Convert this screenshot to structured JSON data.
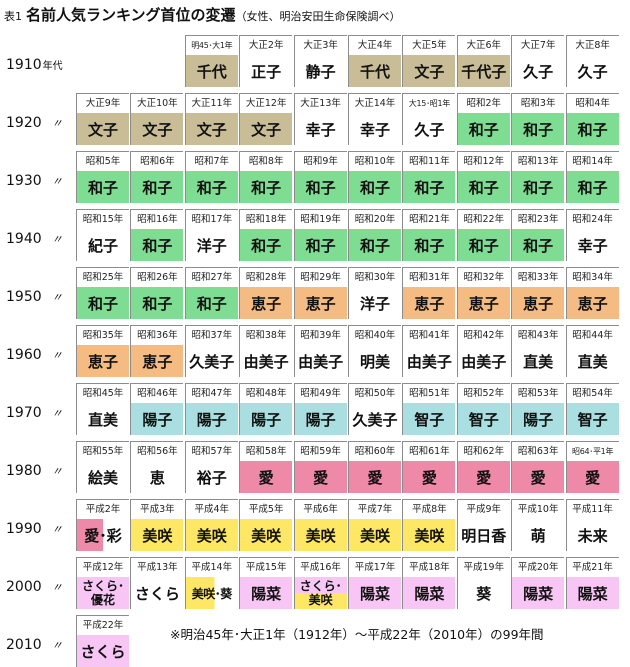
{
  "title": {
    "tag": "表1",
    "main": "名前人気ランキング首位の変遷",
    "note": "（女性、明治安田生命保険調べ）"
  },
  "decade_suffix": "年代",
  "row_mark": "〃",
  "footnote": "※明治45年･大正1年（1912年）～平成22年（2010年）の99年間",
  "rows": [
    {
      "decade": "1910",
      "start_col": 3,
      "cells": [
        {
          "era": "明45･大1年",
          "name": "千代",
          "color": "beige"
        },
        {
          "era": "大正2年",
          "name": "正子",
          "color": "white"
        },
        {
          "era": "大正3年",
          "name": "静子",
          "color": "white"
        },
        {
          "era": "大正4年",
          "name": "千代",
          "color": "beige"
        },
        {
          "era": "大正5年",
          "name": "文子",
          "color": "beige"
        },
        {
          "era": "大正6年",
          "name": "千代子",
          "color": "beige"
        },
        {
          "era": "大正7年",
          "name": "久子",
          "color": "white"
        },
        {
          "era": "大正8年",
          "name": "久子",
          "color": "white"
        }
      ]
    },
    {
      "decade": "1920",
      "start_col": 1,
      "cells": [
        {
          "era": "大正9年",
          "name": "文子",
          "color": "beige"
        },
        {
          "era": "大正10年",
          "name": "文子",
          "color": "beige"
        },
        {
          "era": "大正11年",
          "name": "文子",
          "color": "beige"
        },
        {
          "era": "大正12年",
          "name": "文子",
          "color": "beige"
        },
        {
          "era": "大正13年",
          "name": "幸子",
          "color": "white"
        },
        {
          "era": "大正14年",
          "name": "幸子",
          "color": "white"
        },
        {
          "era": "大15･昭1年",
          "name": "久子",
          "color": "white"
        },
        {
          "era": "昭和2年",
          "name": "和子",
          "color": "green"
        },
        {
          "era": "昭和3年",
          "name": "和子",
          "color": "green"
        },
        {
          "era": "昭和4年",
          "name": "和子",
          "color": "green"
        }
      ]
    },
    {
      "decade": "1930",
      "start_col": 1,
      "cells": [
        {
          "era": "昭和5年",
          "name": "和子",
          "color": "green"
        },
        {
          "era": "昭和6年",
          "name": "和子",
          "color": "green"
        },
        {
          "era": "昭和7年",
          "name": "和子",
          "color": "green"
        },
        {
          "era": "昭和8年",
          "name": "和子",
          "color": "green"
        },
        {
          "era": "昭和9年",
          "name": "和子",
          "color": "green"
        },
        {
          "era": "昭和10年",
          "name": "和子",
          "color": "green"
        },
        {
          "era": "昭和11年",
          "name": "和子",
          "color": "green"
        },
        {
          "era": "昭和12年",
          "name": "和子",
          "color": "green"
        },
        {
          "era": "昭和13年",
          "name": "和子",
          "color": "green"
        },
        {
          "era": "昭和14年",
          "name": "和子",
          "color": "green"
        }
      ]
    },
    {
      "decade": "1940",
      "start_col": 1,
      "cells": [
        {
          "era": "昭和15年",
          "name": "紀子",
          "color": "white"
        },
        {
          "era": "昭和16年",
          "name": "和子",
          "color": "green"
        },
        {
          "era": "昭和17年",
          "name": "洋子",
          "color": "white"
        },
        {
          "era": "昭和18年",
          "name": "和子",
          "color": "green"
        },
        {
          "era": "昭和19年",
          "name": "和子",
          "color": "green"
        },
        {
          "era": "昭和20年",
          "name": "和子",
          "color": "green"
        },
        {
          "era": "昭和21年",
          "name": "和子",
          "color": "green"
        },
        {
          "era": "昭和22年",
          "name": "和子",
          "color": "green"
        },
        {
          "era": "昭和23年",
          "name": "和子",
          "color": "green"
        },
        {
          "era": "昭和24年",
          "name": "幸子",
          "color": "white"
        }
      ]
    },
    {
      "decade": "1950",
      "start_col": 1,
      "cells": [
        {
          "era": "昭和25年",
          "name": "和子",
          "color": "green"
        },
        {
          "era": "昭和26年",
          "name": "和子",
          "color": "green"
        },
        {
          "era": "昭和27年",
          "name": "和子",
          "color": "green"
        },
        {
          "era": "昭和28年",
          "name": "恵子",
          "color": "orange"
        },
        {
          "era": "昭和29年",
          "name": "恵子",
          "color": "orange"
        },
        {
          "era": "昭和30年",
          "name": "洋子",
          "color": "white"
        },
        {
          "era": "昭和31年",
          "name": "恵子",
          "color": "orange"
        },
        {
          "era": "昭和32年",
          "name": "恵子",
          "color": "orange"
        },
        {
          "era": "昭和33年",
          "name": "恵子",
          "color": "orange"
        },
        {
          "era": "昭和34年",
          "name": "恵子",
          "color": "orange"
        }
      ]
    },
    {
      "decade": "1960",
      "start_col": 1,
      "cells": [
        {
          "era": "昭和35年",
          "name": "恵子",
          "color": "orange"
        },
        {
          "era": "昭和36年",
          "name": "恵子",
          "color": "orange"
        },
        {
          "era": "昭和37年",
          "name": "久美子",
          "color": "white"
        },
        {
          "era": "昭和38年",
          "name": "由美子",
          "color": "white"
        },
        {
          "era": "昭和39年",
          "name": "由美子",
          "color": "white"
        },
        {
          "era": "昭和40年",
          "name": "明美",
          "color": "white"
        },
        {
          "era": "昭和41年",
          "name": "由美子",
          "color": "white"
        },
        {
          "era": "昭和42年",
          "name": "由美子",
          "color": "white"
        },
        {
          "era": "昭和43年",
          "name": "直美",
          "color": "white"
        },
        {
          "era": "昭和44年",
          "name": "直美",
          "color": "white"
        }
      ]
    },
    {
      "decade": "1970",
      "start_col": 1,
      "cells": [
        {
          "era": "昭和45年",
          "name": "直美",
          "color": "white"
        },
        {
          "era": "昭和46年",
          "name": "陽子",
          "color": "cyan"
        },
        {
          "era": "昭和47年",
          "name": "陽子",
          "color": "cyan"
        },
        {
          "era": "昭和48年",
          "name": "陽子",
          "color": "cyan"
        },
        {
          "era": "昭和49年",
          "name": "陽子",
          "color": "cyan"
        },
        {
          "era": "昭和50年",
          "name": "久美子",
          "color": "white"
        },
        {
          "era": "昭和51年",
          "name": "智子",
          "color": "cyan"
        },
        {
          "era": "昭和52年",
          "name": "智子",
          "color": "cyan"
        },
        {
          "era": "昭和53年",
          "name": "陽子",
          "color": "cyan"
        },
        {
          "era": "昭和54年",
          "name": "智子",
          "color": "cyan"
        }
      ]
    },
    {
      "decade": "1980",
      "start_col": 1,
      "cells": [
        {
          "era": "昭和55年",
          "name": "絵美",
          "color": "white"
        },
        {
          "era": "昭和56年",
          "name": "恵",
          "color": "white"
        },
        {
          "era": "昭和57年",
          "name": "裕子",
          "color": "white"
        },
        {
          "era": "昭和58年",
          "name": "愛",
          "color": "pink"
        },
        {
          "era": "昭和59年",
          "name": "愛",
          "color": "pink"
        },
        {
          "era": "昭和60年",
          "name": "愛",
          "color": "pink"
        },
        {
          "era": "昭和61年",
          "name": "愛",
          "color": "pink"
        },
        {
          "era": "昭和62年",
          "name": "愛",
          "color": "pink"
        },
        {
          "era": "昭和63年",
          "name": "愛",
          "color": "pink"
        },
        {
          "era": "昭64･平1年",
          "name": "愛",
          "color": "pink"
        }
      ]
    },
    {
      "decade": "1990",
      "start_col": 1,
      "cells": [
        {
          "era": "平成2年",
          "name": "愛･彩",
          "color": "split"
        },
        {
          "era": "平成3年",
          "name": "美咲",
          "color": "yellow"
        },
        {
          "era": "平成4年",
          "name": "美咲",
          "color": "yellow"
        },
        {
          "era": "平成5年",
          "name": "美咲",
          "color": "yellow"
        },
        {
          "era": "平成6年",
          "name": "美咲",
          "color": "yellow"
        },
        {
          "era": "平成7年",
          "name": "美咲",
          "color": "yellow"
        },
        {
          "era": "平成8年",
          "name": "美咲",
          "color": "yellow"
        },
        {
          "era": "平成9年",
          "name": "明日香",
          "color": "white"
        },
        {
          "era": "平成10年",
          "name": "萌",
          "color": "white"
        },
        {
          "era": "平成11年",
          "name": "未来",
          "color": "white"
        }
      ]
    },
    {
      "decade": "2000",
      "start_col": 1,
      "cells": [
        {
          "era": "平成12年",
          "name": "さくら･優花",
          "color": "lilac",
          "style": "wrap"
        },
        {
          "era": "平成13年",
          "name": "さくら",
          "color": "white"
        },
        {
          "era": "平成14年",
          "name": "美咲･葵",
          "color": "split2",
          "style": "small"
        },
        {
          "era": "平成15年",
          "name": "陽菜",
          "color": "lilac"
        },
        {
          "era": "平成16年",
          "name": "さくら･美咲",
          "color": "split3",
          "style": "wrap"
        },
        {
          "era": "平成17年",
          "name": "陽菜",
          "color": "lilac"
        },
        {
          "era": "平成18年",
          "name": "陽菜",
          "color": "lilac"
        },
        {
          "era": "平成19年",
          "name": "葵",
          "color": "white"
        },
        {
          "era": "平成20年",
          "name": "陽菜",
          "color": "lilac"
        },
        {
          "era": "平成21年",
          "name": "陽菜",
          "color": "lilac"
        }
      ]
    },
    {
      "decade": "2010",
      "start_col": 1,
      "cells": [
        {
          "era": "平成22年",
          "name": "さくら",
          "color": "lilac"
        }
      ]
    }
  ]
}
